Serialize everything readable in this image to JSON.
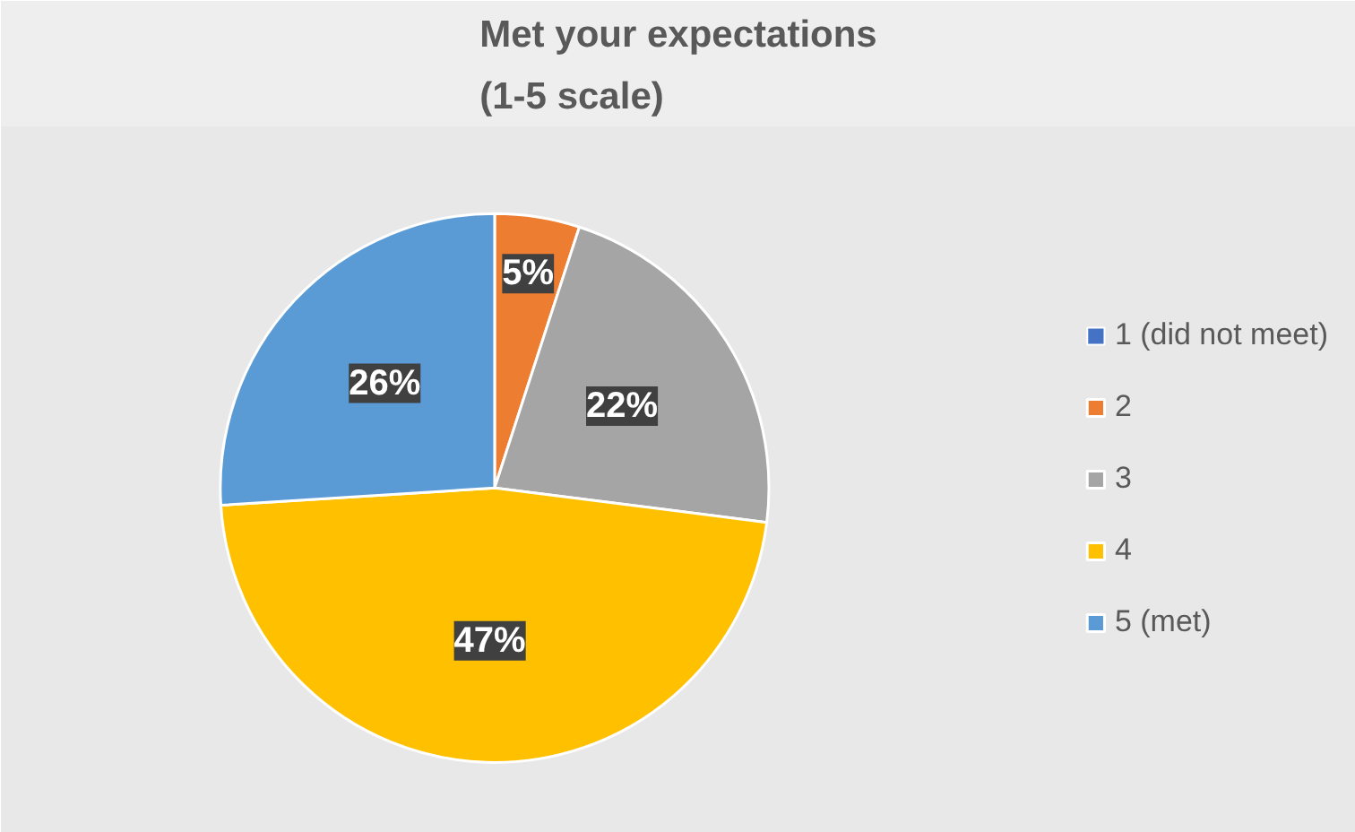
{
  "chart_data": {
    "type": "pie",
    "title": "Met your expectations\n(1-5 scale)",
    "categories": [
      "1 (did not meet)",
      "2",
      "3",
      "4",
      "5 (met)"
    ],
    "values": [
      0,
      5,
      22,
      47,
      26
    ],
    "colors": [
      "#4472c4",
      "#ed7d31",
      "#a5a5a5",
      "#ffc000",
      "#5b9bd5"
    ],
    "value_labels": [
      null,
      "5%",
      "22%",
      "47%",
      "26%"
    ],
    "legend": "right"
  }
}
